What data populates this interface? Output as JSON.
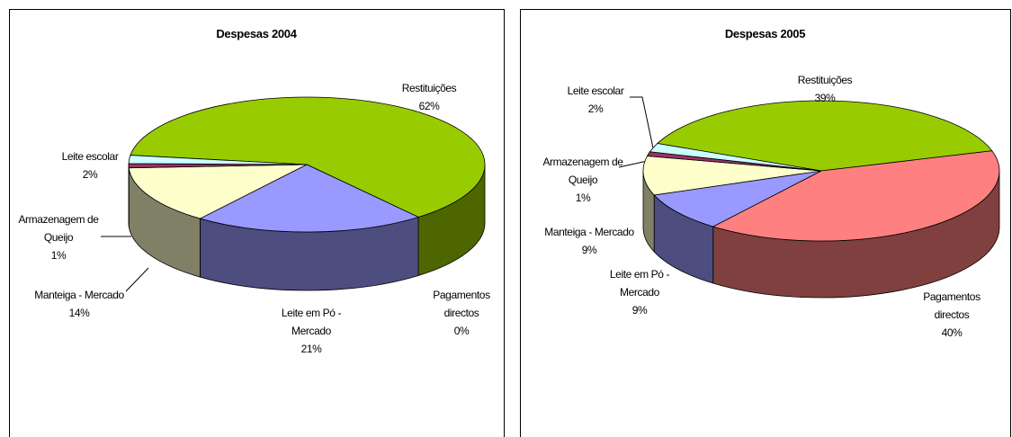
{
  "chart_data": [
    {
      "type": "pie",
      "title": "Despesas 2004",
      "categories": [
        "Restituições",
        "Pagamentos directos",
        "Leite em Pó - Mercado",
        "Manteiga - Mercado",
        "Armazenagem de Queijo",
        "Leite escolar"
      ],
      "values": [
        62,
        0,
        21,
        14,
        1,
        2
      ],
      "value_labels": [
        "62%",
        "0%",
        "21%",
        "14%",
        "1%",
        "2%"
      ],
      "colors": [
        "#99cc00",
        "#ff8080",
        "#9999ff",
        "#ffffcc",
        "#993366",
        "#ccffff"
      ]
    },
    {
      "type": "pie",
      "title": "Despesas 2005",
      "categories": [
        "Restituições",
        "Pagamentos directos",
        "Leite em Pó - Mercado",
        "Manteiga - Mercado",
        "Armazenagem de Queijo",
        "Leite escolar"
      ],
      "values": [
        39,
        40,
        9,
        9,
        1,
        2
      ],
      "value_labels": [
        "39%",
        "40%",
        "9%",
        "9%",
        "1%",
        "2%"
      ],
      "colors": [
        "#99cc00",
        "#ff8080",
        "#9999ff",
        "#ffffcc",
        "#993366",
        "#ccffff"
      ]
    }
  ]
}
